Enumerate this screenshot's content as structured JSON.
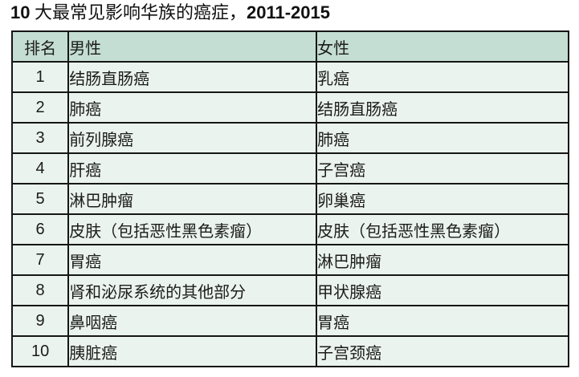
{
  "title": {
    "number": "10",
    "text": " 大最常见影响华族的癌症，",
    "years": "2011-2015"
  },
  "table": {
    "headers": {
      "rank": "排名",
      "male": "男性",
      "female": "女性"
    },
    "rows": [
      {
        "rank": "1",
        "male": "结肠直肠癌",
        "female": "乳癌"
      },
      {
        "rank": "2",
        "male": "肺癌",
        "female": "结肠直肠癌"
      },
      {
        "rank": "3",
        "male": "前列腺癌",
        "female": "肺癌"
      },
      {
        "rank": "4",
        "male": "肝癌",
        "female": "子宫癌"
      },
      {
        "rank": "5",
        "male": "淋巴肿瘤",
        "female": "卵巢癌"
      },
      {
        "rank": "6",
        "male": "皮肤（包括恶性黑色素瘤）",
        "female": "皮肤（包括恶性黑色素瘤）"
      },
      {
        "rank": "7",
        "male": "胃癌",
        "female": "淋巴肿瘤"
      },
      {
        "rank": "8",
        "male": "肾和泌尿系统的其他部分",
        "female": "甲状腺癌"
      },
      {
        "rank": "9",
        "male": "鼻咽癌",
        "female": "胃癌"
      },
      {
        "rank": "10",
        "male": "胰脏癌",
        "female": "子宫颈癌"
      }
    ]
  },
  "colors": {
    "header_bg": "#c4ded3",
    "row_bg": "#eaf3ee",
    "border": "#161616",
    "text": "#1c1c1c"
  }
}
